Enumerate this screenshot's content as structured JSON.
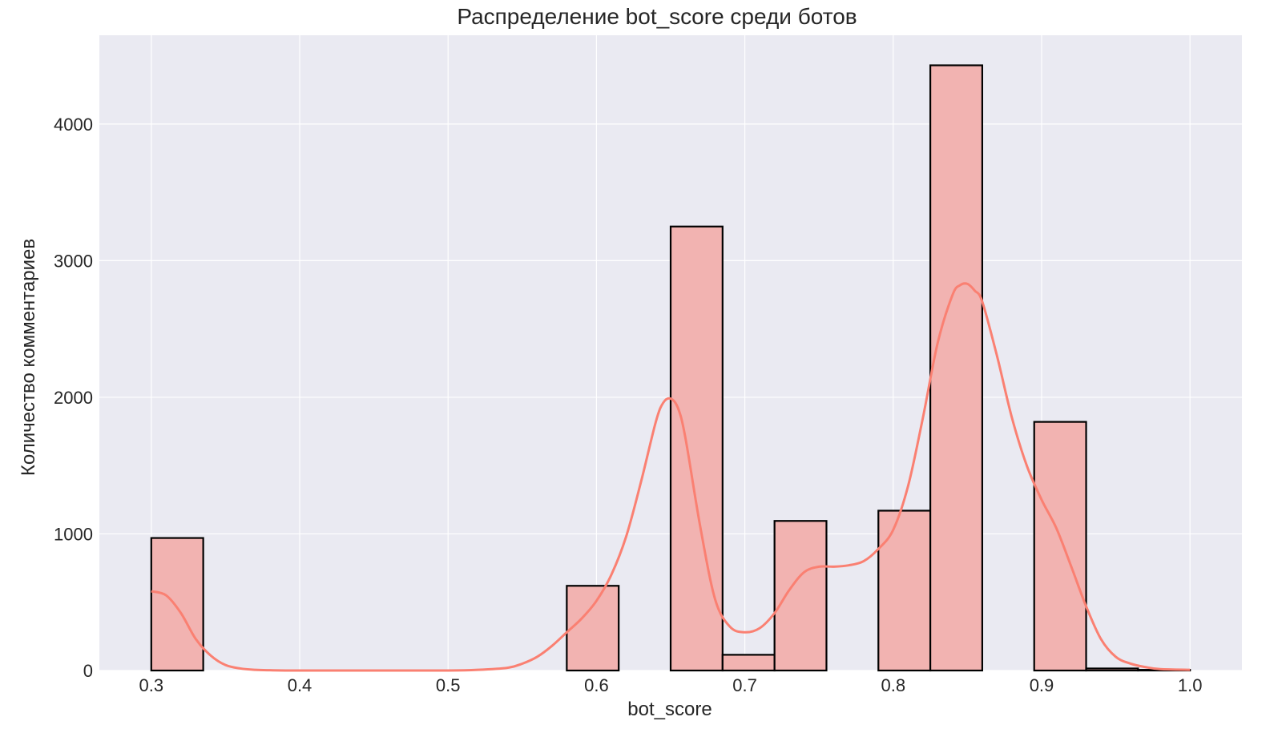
{
  "chart_data": {
    "type": "bar",
    "title": "Распределение bot_score среди ботов",
    "xlabel": "bot_score",
    "ylabel": "Количество комментариев",
    "xlim": [
      0.265,
      1.035
    ],
    "ylim": [
      0,
      4650
    ],
    "x_ticks": [
      0.3,
      0.4,
      0.5,
      0.6,
      0.7,
      0.8,
      0.9,
      1.0
    ],
    "x_tick_labels": [
      "0.3",
      "0.4",
      "0.5",
      "0.6",
      "0.7",
      "0.8",
      "0.9",
      "1.0"
    ],
    "y_ticks": [
      0,
      1000,
      2000,
      3000,
      4000
    ],
    "y_tick_labels": [
      "0",
      "1000",
      "2000",
      "3000",
      "4000"
    ],
    "grid": true,
    "background_color": "#eaeaf2",
    "bar_color": "#f2b3b1",
    "bar_edge_color": "#000000",
    "kde_color": "#fa8072",
    "bins": [
      {
        "start": 0.3,
        "end": 0.335,
        "count": 970
      },
      {
        "start": 0.335,
        "end": 0.37,
        "count": 0
      },
      {
        "start": 0.37,
        "end": 0.405,
        "count": 0
      },
      {
        "start": 0.405,
        "end": 0.44,
        "count": 0
      },
      {
        "start": 0.44,
        "end": 0.475,
        "count": 0
      },
      {
        "start": 0.475,
        "end": 0.51,
        "count": 0
      },
      {
        "start": 0.51,
        "end": 0.545,
        "count": 0
      },
      {
        "start": 0.545,
        "end": 0.58,
        "count": 0
      },
      {
        "start": 0.58,
        "end": 0.615,
        "count": 620
      },
      {
        "start": 0.615,
        "end": 0.65,
        "count": 0
      },
      {
        "start": 0.65,
        "end": 0.685,
        "count": 3250
      },
      {
        "start": 0.685,
        "end": 0.72,
        "count": 115
      },
      {
        "start": 0.72,
        "end": 0.755,
        "count": 1095
      },
      {
        "start": 0.755,
        "end": 0.79,
        "count": 0
      },
      {
        "start": 0.79,
        "end": 0.825,
        "count": 1170
      },
      {
        "start": 0.825,
        "end": 0.86,
        "count": 4430
      },
      {
        "start": 0.86,
        "end": 0.895,
        "count": 0
      },
      {
        "start": 0.895,
        "end": 0.93,
        "count": 1820
      },
      {
        "start": 0.93,
        "end": 0.965,
        "count": 15
      },
      {
        "start": 0.965,
        "end": 1.0,
        "count": 5
      }
    ],
    "kde": {
      "x": [
        0.3,
        0.31,
        0.32,
        0.33,
        0.34,
        0.35,
        0.36,
        0.37,
        0.38,
        0.4,
        0.45,
        0.5,
        0.52,
        0.54,
        0.55,
        0.56,
        0.57,
        0.58,
        0.59,
        0.6,
        0.61,
        0.62,
        0.63,
        0.64,
        0.645,
        0.65,
        0.655,
        0.66,
        0.67,
        0.68,
        0.69,
        0.7,
        0.71,
        0.72,
        0.73,
        0.74,
        0.75,
        0.76,
        0.77,
        0.78,
        0.79,
        0.8,
        0.81,
        0.82,
        0.83,
        0.84,
        0.845,
        0.85,
        0.855,
        0.86,
        0.87,
        0.88,
        0.89,
        0.9,
        0.91,
        0.92,
        0.93,
        0.94,
        0.95,
        0.96,
        0.97,
        0.98,
        1.0
      ],
      "y": [
        580,
        550,
        420,
        230,
        110,
        40,
        15,
        5,
        2,
        0,
        0,
        0,
        5,
        20,
        50,
        100,
        180,
        280,
        380,
        510,
        700,
        980,
        1380,
        1820,
        1960,
        1990,
        1920,
        1700,
        1050,
        520,
        320,
        280,
        310,
        420,
        590,
        720,
        760,
        760,
        770,
        800,
        890,
        1030,
        1350,
        1850,
        2400,
        2750,
        2820,
        2830,
        2780,
        2700,
        2300,
        1850,
        1500,
        1250,
        1040,
        760,
        470,
        230,
        100,
        50,
        25,
        10,
        5
      ]
    }
  }
}
